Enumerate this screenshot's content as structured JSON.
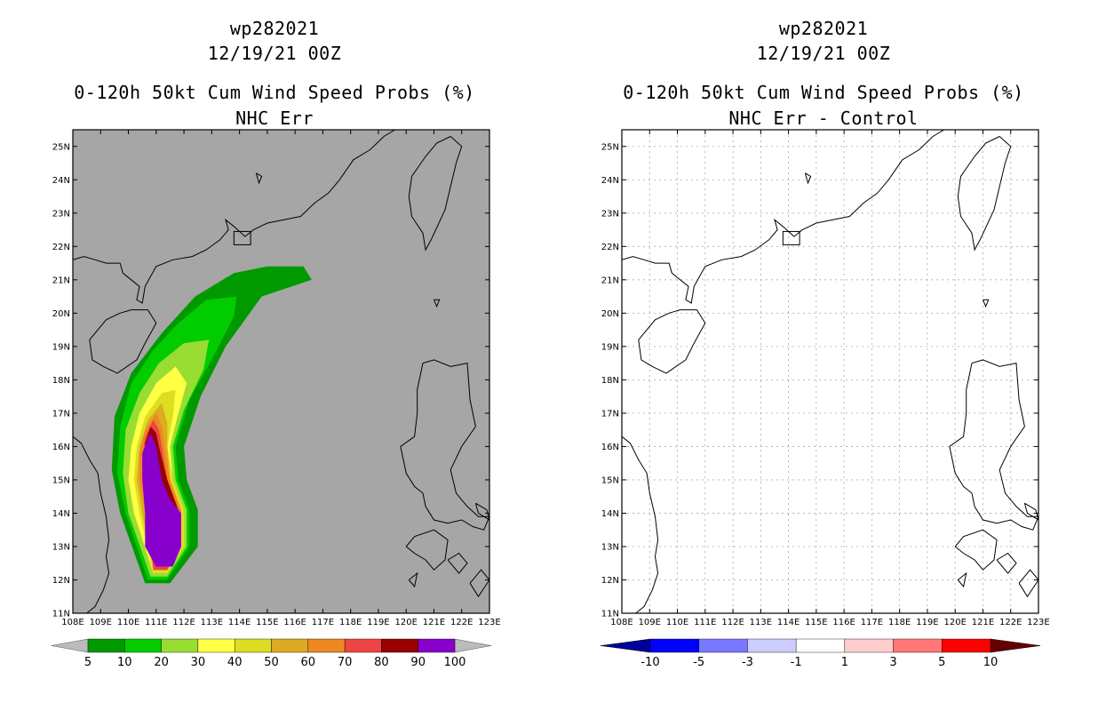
{
  "panels": [
    {
      "id": "left",
      "storm": "wp282021",
      "datetime": "12/19/21 00Z",
      "product": "0-120h 50kt Cum Wind Speed Probs (%)",
      "subtitle": "NHC Err",
      "background": "#a6a6a6",
      "colorbar": {
        "labels": [
          "5",
          "10",
          "20",
          "30",
          "40",
          "50",
          "60",
          "70",
          "80",
          "90",
          "100"
        ],
        "colors": [
          "#009900",
          "#00cc00",
          "#99dd33",
          "#ffff44",
          "#dddd22",
          "#ddaa22",
          "#ee8822",
          "#ee4444",
          "#990000",
          "#8800cc"
        ],
        "end_color": "#bbbbbb"
      }
    },
    {
      "id": "right",
      "storm": "wp282021",
      "datetime": "12/19/21 00Z",
      "product": "0-120h 50kt Cum Wind Speed Probs (%)",
      "subtitle": "NHC Err - Control",
      "background": "#ffffff",
      "colorbar": {
        "labels": [
          "-10",
          "-5",
          "-3",
          "-1",
          "1",
          "3",
          "5",
          "10"
        ],
        "colors": [
          "#0000ff",
          "#7777ff",
          "#ccccff",
          "#ffffff",
          "#ffcccc",
          "#ff7777",
          "#ff0000"
        ],
        "end_left": "#000099",
        "end_right": "#660000"
      }
    }
  ],
  "axes": {
    "lon_ticks": [
      "108E",
      "109E",
      "110E",
      "111E",
      "112E",
      "113E",
      "114E",
      "115E",
      "116E",
      "117E",
      "118E",
      "119E",
      "120E",
      "121E",
      "122E",
      "123E"
    ],
    "lat_ticks": [
      "11N",
      "12N",
      "13N",
      "14N",
      "15N",
      "16N",
      "17N",
      "18N",
      "19N",
      "20N",
      "21N",
      "22N",
      "23N",
      "24N",
      "25N"
    ],
    "lon_range": [
      108,
      123
    ],
    "lat_range": [
      11,
      25.5
    ]
  },
  "chart_data": [
    {
      "type": "heatmap",
      "title": "0-120h 50kt Cum Wind Speed Probs (%)",
      "subtitle": "NHC Err",
      "xlabel": "",
      "ylabel": "",
      "xlim": [
        108,
        123
      ],
      "ylim": [
        11,
        25.5
      ],
      "grid": false,
      "levels": [
        5,
        10,
        20,
        30,
        40,
        50,
        60,
        70,
        80,
        90,
        100
      ],
      "contours": [
        {
          "level": 5,
          "polygon": [
            [
              110.6,
              11.9
            ],
            [
              111.5,
              11.9
            ],
            [
              112.5,
              13.0
            ],
            [
              112.5,
              14.1
            ],
            [
              112.1,
              15.0
            ],
            [
              112.0,
              16.0
            ],
            [
              112.6,
              17.5
            ],
            [
              113.5,
              19.0
            ],
            [
              114.8,
              20.5
            ],
            [
              116.6,
              21.0
            ],
            [
              116.3,
              21.4
            ],
            [
              115.0,
              21.4
            ],
            [
              113.8,
              21.2
            ],
            [
              112.4,
              20.5
            ],
            [
              111.2,
              19.4
            ],
            [
              110.1,
              18.2
            ],
            [
              109.5,
              16.9
            ],
            [
              109.4,
              15.3
            ],
            [
              109.7,
              14.0
            ],
            [
              110.6,
              11.9
            ]
          ]
        },
        {
          "level": 10,
          "polygon": [
            [
              110.7,
              12.0
            ],
            [
              111.4,
              12.0
            ],
            [
              112.2,
              13.0
            ],
            [
              112.2,
              14.1
            ],
            [
              111.8,
              15.0
            ],
            [
              111.7,
              16.0
            ],
            [
              112.2,
              17.4
            ],
            [
              113.0,
              18.6
            ],
            [
              113.8,
              19.9
            ],
            [
              113.9,
              20.5
            ],
            [
              112.8,
              20.4
            ],
            [
              111.8,
              19.7
            ],
            [
              110.9,
              18.9
            ],
            [
              110.1,
              17.9
            ],
            [
              109.7,
              16.6
            ],
            [
              109.6,
              15.2
            ],
            [
              109.9,
              14.0
            ],
            [
              110.7,
              12.0
            ]
          ]
        },
        {
          "level": 20,
          "polygon": [
            [
              110.8,
              12.1
            ],
            [
              111.4,
              12.1
            ],
            [
              112.1,
              13.0
            ],
            [
              112.1,
              14.1
            ],
            [
              111.7,
              15.0
            ],
            [
              111.6,
              16.0
            ],
            [
              112.0,
              17.1
            ],
            [
              112.7,
              18.3
            ],
            [
              112.9,
              19.2
            ],
            [
              112.0,
              19.1
            ],
            [
              111.1,
              18.5
            ],
            [
              110.4,
              17.6
            ],
            [
              109.9,
              16.5
            ],
            [
              109.8,
              15.2
            ],
            [
              110.0,
              14.0
            ],
            [
              110.8,
              12.1
            ]
          ]
        },
        {
          "level": 30,
          "polygon": [
            [
              110.9,
              12.2
            ],
            [
              111.4,
              12.2
            ],
            [
              112.0,
              13.0
            ],
            [
              112.0,
              14.1
            ],
            [
              111.6,
              15.0
            ],
            [
              111.5,
              16.0
            ],
            [
              111.8,
              17.0
            ],
            [
              112.1,
              17.9
            ],
            [
              111.7,
              18.4
            ],
            [
              111.0,
              17.9
            ],
            [
              110.4,
              17.0
            ],
            [
              110.1,
              16.0
            ],
            [
              110.0,
              15.0
            ],
            [
              110.2,
              14.0
            ],
            [
              110.9,
              12.2
            ]
          ]
        },
        {
          "level": 40,
          "polygon": [
            [
              110.9,
              12.2
            ],
            [
              111.4,
              12.2
            ],
            [
              112.0,
              13.0
            ],
            [
              112.0,
              14.1
            ],
            [
              111.6,
              15.0
            ],
            [
              111.4,
              16.0
            ],
            [
              111.6,
              16.9
            ],
            [
              111.7,
              17.7
            ],
            [
              111.2,
              17.6
            ],
            [
              110.6,
              16.9
            ],
            [
              110.3,
              16.0
            ],
            [
              110.2,
              15.0
            ],
            [
              110.4,
              14.0
            ],
            [
              110.9,
              12.2
            ]
          ]
        },
        {
          "level": 50,
          "polygon": [
            [
              110.9,
              12.3
            ],
            [
              111.4,
              12.3
            ],
            [
              111.9,
              13.0
            ],
            [
              111.9,
              14.1
            ],
            [
              111.5,
              15.0
            ],
            [
              111.4,
              16.0
            ],
            [
              111.4,
              16.7
            ],
            [
              111.2,
              17.3
            ],
            [
              110.7,
              16.8
            ],
            [
              110.4,
              16.0
            ],
            [
              110.3,
              15.0
            ],
            [
              110.5,
              14.0
            ],
            [
              110.9,
              12.3
            ]
          ]
        },
        {
          "level": 60,
          "polygon": [
            [
              110.9,
              12.3
            ],
            [
              111.4,
              12.3
            ],
            [
              111.9,
              13.0
            ],
            [
              111.9,
              14.1
            ],
            [
              111.5,
              15.0
            ],
            [
              111.3,
              16.0
            ],
            [
              111.2,
              16.6
            ],
            [
              111.0,
              17.0
            ],
            [
              110.6,
              16.5
            ],
            [
              110.4,
              15.8
            ],
            [
              110.4,
              15.0
            ],
            [
              110.6,
              14.0
            ],
            [
              110.9,
              12.3
            ]
          ]
        },
        {
          "level": 70,
          "polygon": [
            [
              110.9,
              12.3
            ],
            [
              111.4,
              12.3
            ],
            [
              111.8,
              13.0
            ],
            [
              111.8,
              14.1
            ],
            [
              111.4,
              15.0
            ],
            [
              111.2,
              16.0
            ],
            [
              111.1,
              16.5
            ],
            [
              110.9,
              16.8
            ],
            [
              110.6,
              16.3
            ],
            [
              110.5,
              15.6
            ],
            [
              110.5,
              15.0
            ],
            [
              110.7,
              14.0
            ],
            [
              110.9,
              12.3
            ]
          ]
        },
        {
          "level": 80,
          "polygon": [
            [
              111.0,
              12.4
            ],
            [
              111.4,
              12.4
            ],
            [
              111.8,
              13.0
            ],
            [
              111.8,
              14.1
            ],
            [
              111.4,
              15.0
            ],
            [
              111.1,
              16.0
            ],
            [
              111.0,
              16.4
            ],
            [
              110.8,
              16.6
            ],
            [
              110.6,
              16.1
            ],
            [
              110.6,
              15.4
            ],
            [
              110.6,
              15.0
            ],
            [
              110.8,
              14.0
            ],
            [
              111.0,
              12.4
            ]
          ]
        },
        {
          "level": 90,
          "polygon": [
            [
              111.0,
              12.4
            ],
            [
              111.6,
              12.4
            ],
            [
              111.9,
              13.0
            ],
            [
              111.9,
              14.0
            ],
            [
              111.5,
              14.4
            ],
            [
              111.2,
              15.0
            ],
            [
              111.0,
              16.0
            ],
            [
              110.8,
              16.4
            ],
            [
              110.5,
              15.8
            ],
            [
              110.5,
              15.0
            ],
            [
              110.6,
              14.0
            ],
            [
              110.6,
              13.0
            ],
            [
              111.0,
              12.4
            ]
          ]
        }
      ]
    },
    {
      "type": "heatmap",
      "title": "0-120h 50kt Cum Wind Speed Probs (%)",
      "subtitle": "NHC Err - Control",
      "xlabel": "",
      "ylabel": "",
      "xlim": [
        108,
        123
      ],
      "ylim": [
        11,
        25.5
      ],
      "grid": true,
      "levels": [
        -10,
        -5,
        -3,
        -1,
        1,
        3,
        5,
        10
      ],
      "values": "all within -1..1 (no shaded differences)"
    }
  ],
  "coastlines": [
    [
      [
        108,
        16.3
      ],
      [
        108.3,
        16.1
      ],
      [
        108.6,
        15.6
      ],
      [
        108.9,
        15.2
      ],
      [
        109.0,
        14.6
      ],
      [
        109.2,
        13.9
      ],
      [
        109.3,
        13.2
      ],
      [
        109.2,
        12.7
      ],
      [
        109.3,
        12.2
      ],
      [
        109.1,
        11.7
      ],
      [
        108.8,
        11.2
      ],
      [
        108.5,
        11.0
      ]
    ],
    [
      [
        108,
        21.6
      ],
      [
        108.4,
        21.7
      ],
      [
        108.8,
        21.6
      ],
      [
        109.2,
        21.5
      ],
      [
        109.7,
        21.5
      ],
      [
        109.8,
        21.2
      ],
      [
        110.1,
        21.0
      ],
      [
        110.4,
        20.8
      ],
      [
        110.3,
        20.4
      ],
      [
        110.5,
        20.3
      ],
      [
        110.6,
        20.8
      ],
      [
        111.0,
        21.4
      ],
      [
        111.6,
        21.6
      ],
      [
        112.3,
        21.7
      ],
      [
        112.8,
        21.9
      ],
      [
        113.3,
        22.2
      ],
      [
        113.6,
        22.5
      ],
      [
        113.5,
        22.8
      ],
      [
        113.8,
        22.6
      ],
      [
        114.2,
        22.3
      ],
      [
        114.5,
        22.5
      ],
      [
        115.0,
        22.7
      ],
      [
        115.6,
        22.8
      ],
      [
        116.2,
        22.9
      ],
      [
        116.7,
        23.3
      ],
      [
        117.2,
        23.6
      ],
      [
        117.6,
        24.0
      ],
      [
        118.1,
        24.6
      ],
      [
        118.7,
        24.9
      ],
      [
        119.2,
        25.3
      ],
      [
        119.6,
        25.5
      ]
    ],
    [
      [
        110.1,
        20.1
      ],
      [
        110.7,
        20.1
      ],
      [
        111.0,
        19.7
      ],
      [
        110.6,
        19.1
      ],
      [
        110.3,
        18.6
      ],
      [
        109.6,
        18.2
      ],
      [
        109.1,
        18.4
      ],
      [
        108.7,
        18.6
      ],
      [
        108.6,
        19.2
      ],
      [
        109.2,
        19.8
      ],
      [
        109.7,
        20.0
      ],
      [
        110.1,
        20.1
      ]
    ],
    [
      [
        121.6,
        25.3
      ],
      [
        122.0,
        25.0
      ],
      [
        121.8,
        24.5
      ],
      [
        121.6,
        23.8
      ],
      [
        121.4,
        23.1
      ],
      [
        120.9,
        22.2
      ],
      [
        120.7,
        21.9
      ],
      [
        120.6,
        22.4
      ],
      [
        120.2,
        22.9
      ],
      [
        120.1,
        23.5
      ],
      [
        120.2,
        24.1
      ],
      [
        120.7,
        24.7
      ],
      [
        121.1,
        25.1
      ],
      [
        121.6,
        25.3
      ]
    ],
    [
      [
        120.6,
        18.5
      ],
      [
        121.0,
        18.6
      ],
      [
        121.6,
        18.4
      ],
      [
        122.2,
        18.5
      ],
      [
        122.3,
        17.4
      ],
      [
        122.5,
        16.6
      ],
      [
        122.0,
        16.0
      ],
      [
        121.6,
        15.3
      ],
      [
        121.8,
        14.6
      ],
      [
        122.2,
        14.2
      ],
      [
        122.6,
        13.9
      ],
      [
        123.0,
        13.9
      ],
      [
        122.8,
        13.5
      ],
      [
        122.4,
        13.6
      ],
      [
        122.0,
        13.8
      ],
      [
        121.5,
        13.7
      ],
      [
        121.0,
        13.8
      ],
      [
        120.7,
        14.2
      ],
      [
        120.6,
        14.6
      ],
      [
        120.3,
        14.8
      ],
      [
        120.0,
        15.2
      ],
      [
        119.8,
        16.0
      ],
      [
        120.3,
        16.3
      ],
      [
        120.4,
        17.0
      ],
      [
        120.4,
        17.7
      ],
      [
        120.6,
        18.5
      ]
    ],
    [
      [
        120.0,
        13.0
      ],
      [
        120.3,
        13.3
      ],
      [
        121.0,
        13.5
      ],
      [
        121.5,
        13.2
      ],
      [
        121.4,
        12.6
      ],
      [
        121.0,
        12.3
      ],
      [
        120.7,
        12.6
      ],
      [
        120.3,
        12.8
      ],
      [
        120.0,
        13.0
      ]
    ],
    [
      [
        121.5,
        12.6
      ],
      [
        121.9,
        12.8
      ],
      [
        122.2,
        12.5
      ],
      [
        121.9,
        12.2
      ],
      [
        121.5,
        12.6
      ]
    ],
    [
      [
        122.3,
        11.9
      ],
      [
        122.7,
        12.3
      ],
      [
        123.0,
        12.0
      ],
      [
        122.6,
        11.5
      ],
      [
        122.3,
        11.9
      ]
    ],
    [
      [
        120.1,
        12.0
      ],
      [
        120.4,
        12.2
      ],
      [
        120.3,
        11.8
      ],
      [
        120.1,
        12.0
      ]
    ],
    [
      [
        121.0,
        20.4
      ],
      [
        121.2,
        20.4
      ],
      [
        121.1,
        20.2
      ],
      [
        121.0,
        20.4
      ]
    ],
    [
      [
        122.5,
        14.3
      ],
      [
        122.9,
        14.1
      ],
      [
        123.0,
        13.8
      ],
      [
        122.6,
        14.0
      ],
      [
        122.5,
        14.3
      ]
    ],
    [
      [
        114.6,
        24.2
      ],
      [
        114.8,
        24.1
      ],
      [
        114.7,
        23.9
      ],
      [
        114.6,
        24.2
      ]
    ]
  ]
}
